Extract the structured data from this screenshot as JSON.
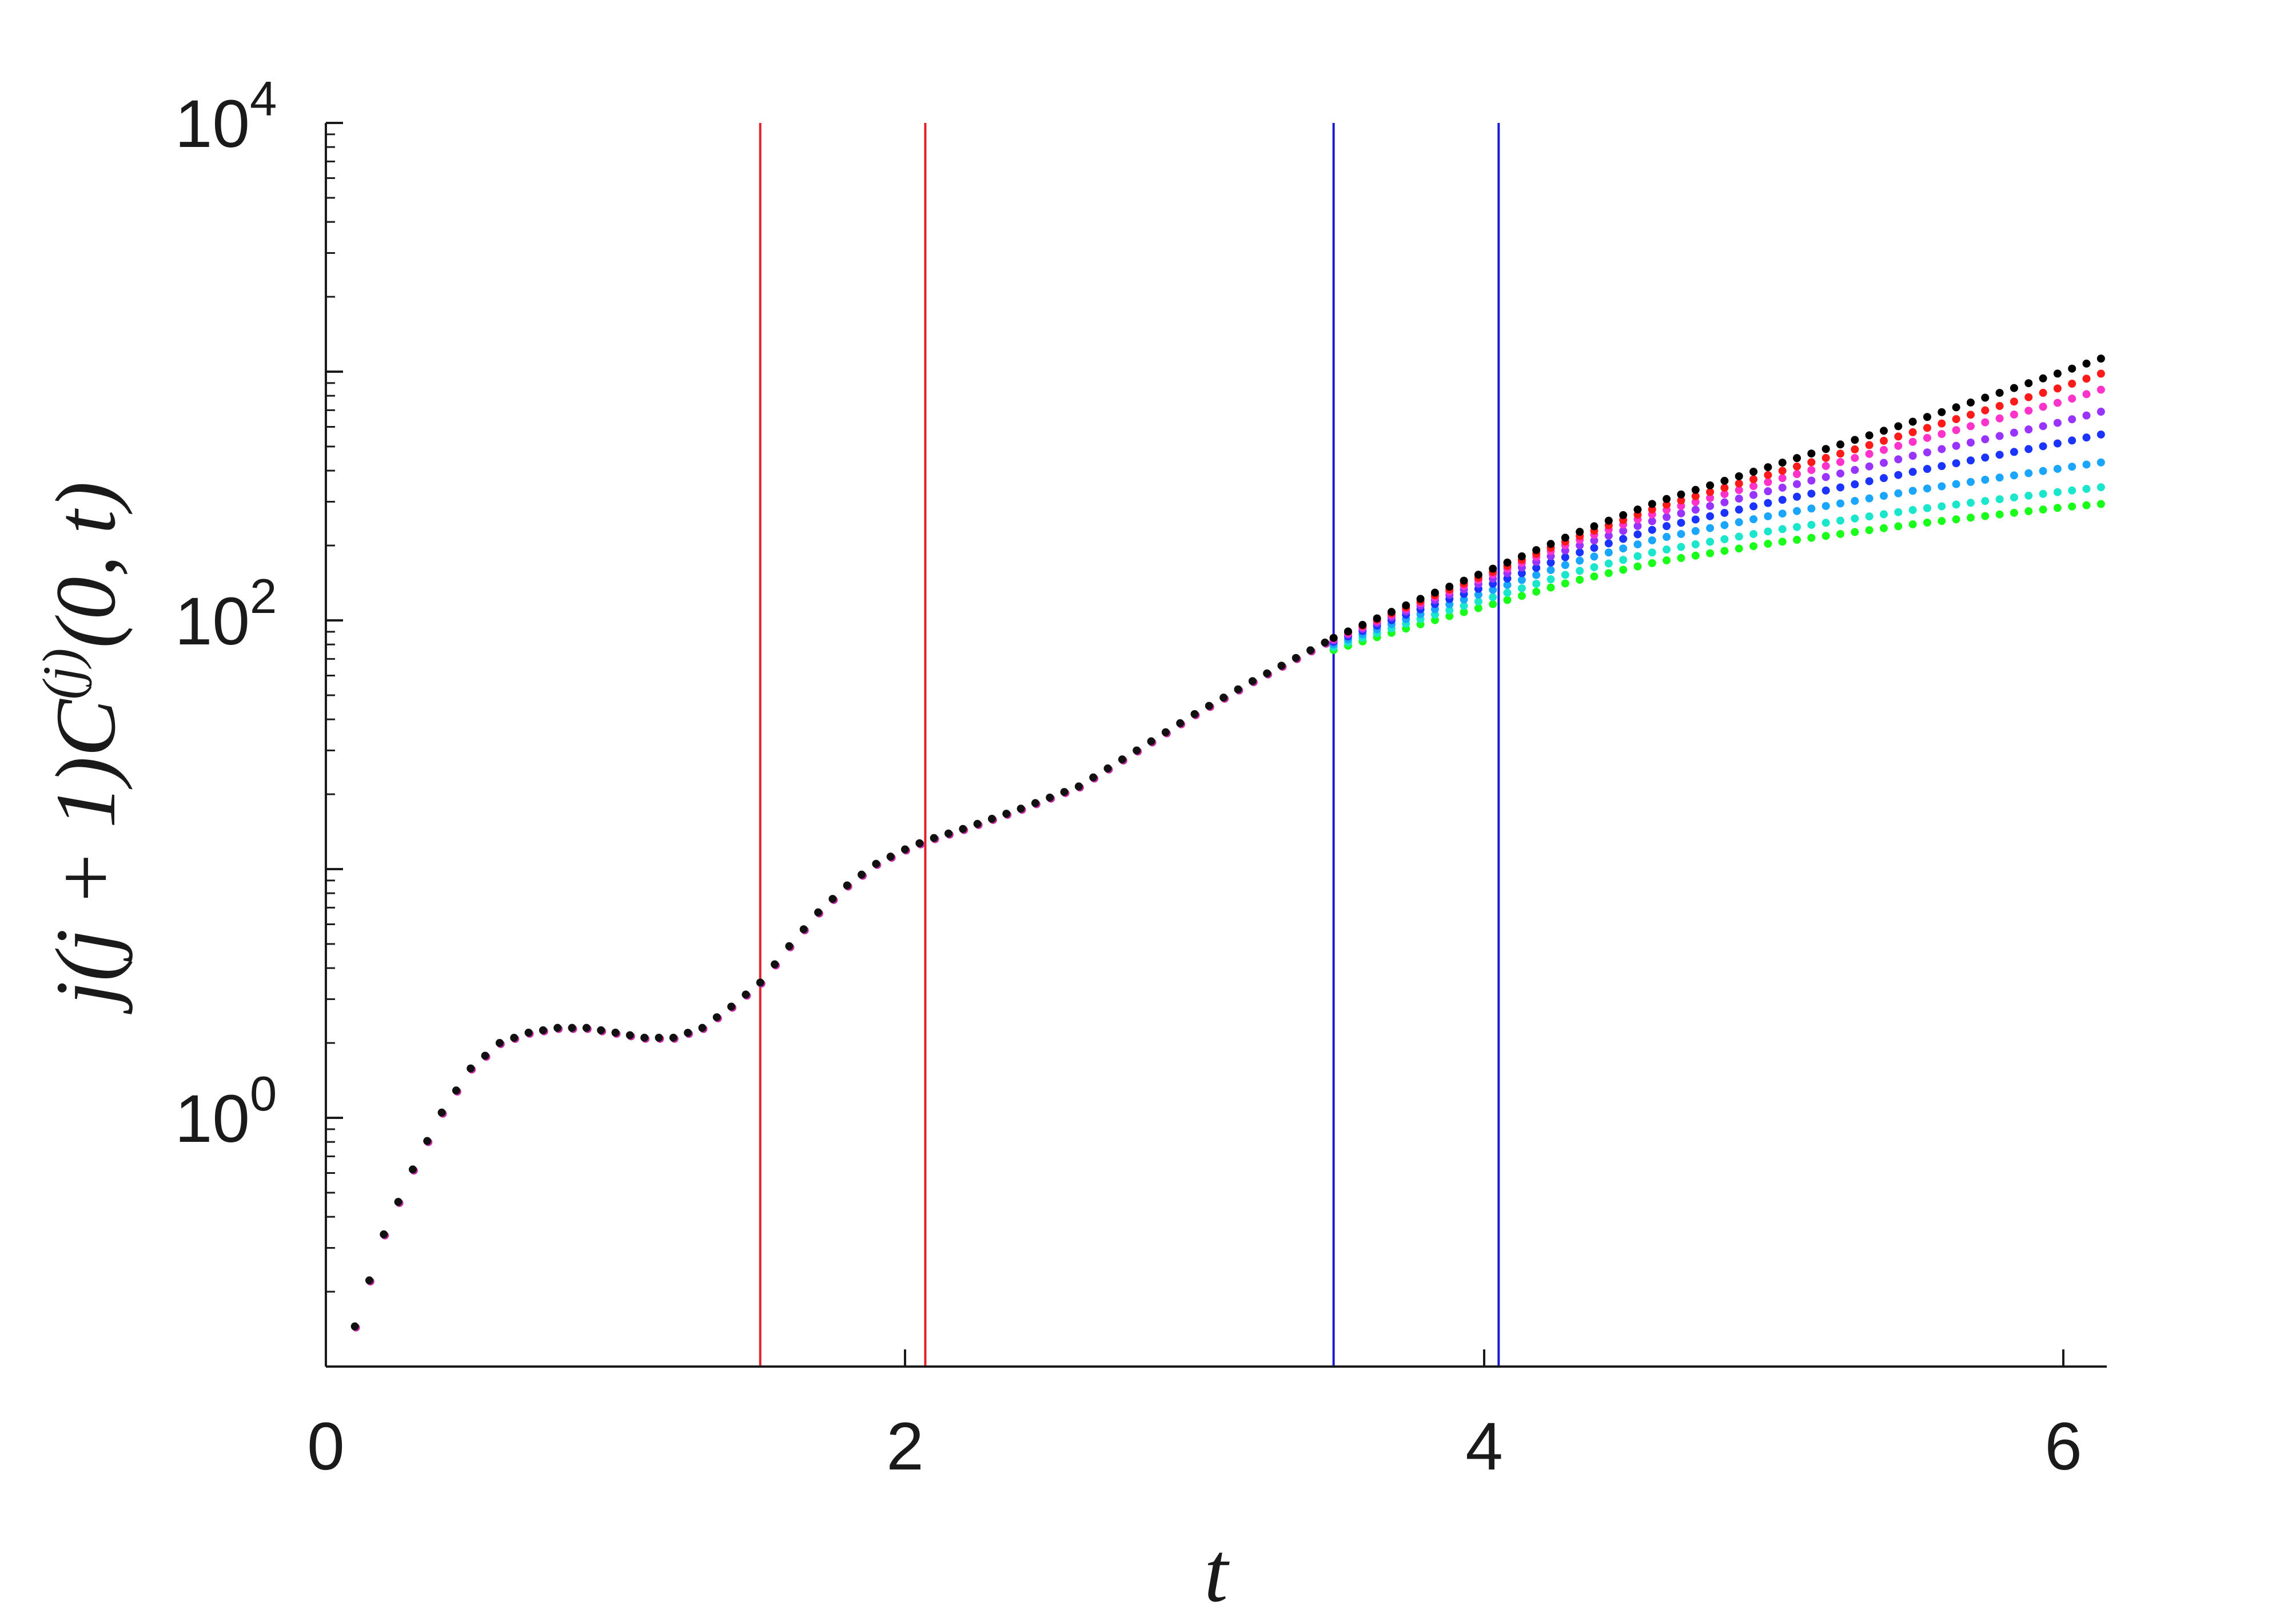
{
  "chart_data": {
    "type": "scatter",
    "xlabel": "t",
    "ylabel": "j(j + 1)C(j)(0, t)",
    "ylabel_parts": {
      "pre": "j(j + 1)C",
      "sup": "(j)",
      "post": "(0, t)"
    },
    "xlim": [
      0,
      6.15
    ],
    "ylim_log10": [
      -1,
      4
    ],
    "yscale": "log",
    "grid": false,
    "x_ticks": [
      {
        "value": 0,
        "label": "0"
      },
      {
        "value": 2,
        "label": "2"
      },
      {
        "value": 4,
        "label": "4"
      },
      {
        "value": 6,
        "label": "6"
      }
    ],
    "y_ticks": [
      {
        "exp": 0,
        "base": "10",
        "sup": "0"
      },
      {
        "exp": 2,
        "base": "10",
        "sup": "2"
      },
      {
        "exp": 4,
        "base": "10",
        "sup": "4"
      }
    ],
    "vertical_lines": [
      {
        "x": 1.5,
        "color": "#e0202a"
      },
      {
        "x": 2.07,
        "color": "#e0202a"
      },
      {
        "x": 3.48,
        "color": "#1a1ad0"
      },
      {
        "x": 4.05,
        "color": "#1a1ad0"
      }
    ],
    "shared_curve": {
      "x": [
        0.1,
        0.2,
        0.3,
        0.4,
        0.5,
        0.6,
        0.7,
        0.8,
        0.9,
        1.0,
        1.1,
        1.2,
        1.3,
        1.4,
        1.5,
        1.6,
        1.7,
        1.8,
        1.9,
        2.0,
        2.07,
        2.2,
        2.4,
        2.6,
        2.8,
        3.0,
        3.2,
        3.48
      ],
      "y": [
        0.145,
        0.34,
        0.62,
        1.05,
        1.58,
        2.0,
        2.2,
        2.3,
        2.3,
        2.2,
        2.1,
        2.1,
        2.3,
        2.8,
        3.5,
        4.9,
        6.7,
        8.6,
        10.5,
        12.0,
        13.0,
        14.5,
        17.5,
        21.5,
        30.0,
        42.0,
        57.0,
        85.0
      ]
    },
    "series": [
      {
        "color": "#000000",
        "x": [
          3.48,
          3.8,
          4.05,
          4.3,
          4.6,
          5.0,
          5.5,
          6.0,
          6.15
        ],
        "y": [
          85,
          125,
          165,
          220,
          300,
          420,
          640,
          1000,
          1150
        ]
      },
      {
        "color": "#ff1a1a",
        "x": [
          3.48,
          3.8,
          4.05,
          4.3,
          4.6,
          5.0,
          5.5,
          6.0,
          6.15
        ],
        "y": [
          85,
          122,
          160,
          212,
          285,
          390,
          580,
          870,
          1000
        ]
      },
      {
        "color": "#ff33cc",
        "x": [
          3.48,
          3.8,
          4.05,
          4.3,
          4.6,
          5.0,
          5.5,
          6.0,
          6.15
        ],
        "y": [
          84,
          120,
          156,
          205,
          272,
          365,
          530,
          760,
          860
        ]
      },
      {
        "color": "#9933ff",
        "x": [
          3.48,
          3.8,
          4.05,
          4.3,
          4.6,
          5.0,
          5.5,
          6.0,
          6.15
        ],
        "y": [
          83,
          117,
          150,
          195,
          255,
          335,
          465,
          630,
          700
        ]
      },
      {
        "color": "#1a33ff",
        "x": [
          3.48,
          3.8,
          4.05,
          4.3,
          4.6,
          5.0,
          5.5,
          6.0,
          6.15
        ],
        "y": [
          82,
          113,
          143,
          183,
          235,
          300,
          400,
          520,
          565
        ]
      },
      {
        "color": "#1aa6ff",
        "x": [
          3.48,
          3.8,
          4.05,
          4.3,
          4.6,
          5.0,
          5.5,
          6.0,
          6.15
        ],
        "y": [
          80,
          108,
          135,
          170,
          213,
          265,
          335,
          410,
          435
        ]
      },
      {
        "color": "#1ae6cc",
        "x": [
          3.48,
          3.8,
          4.05,
          4.3,
          4.6,
          5.0,
          5.5,
          6.0,
          6.15
        ],
        "y": [
          78,
          103,
          126,
          155,
          190,
          230,
          280,
          330,
          345
        ]
      },
      {
        "color": "#1aff1a",
        "x": [
          3.48,
          3.8,
          4.05,
          4.3,
          4.6,
          5.0,
          5.5,
          6.0,
          6.15
        ],
        "y": [
          76,
          98,
          118,
          143,
          172,
          205,
          245,
          285,
          295
        ]
      }
    ]
  }
}
